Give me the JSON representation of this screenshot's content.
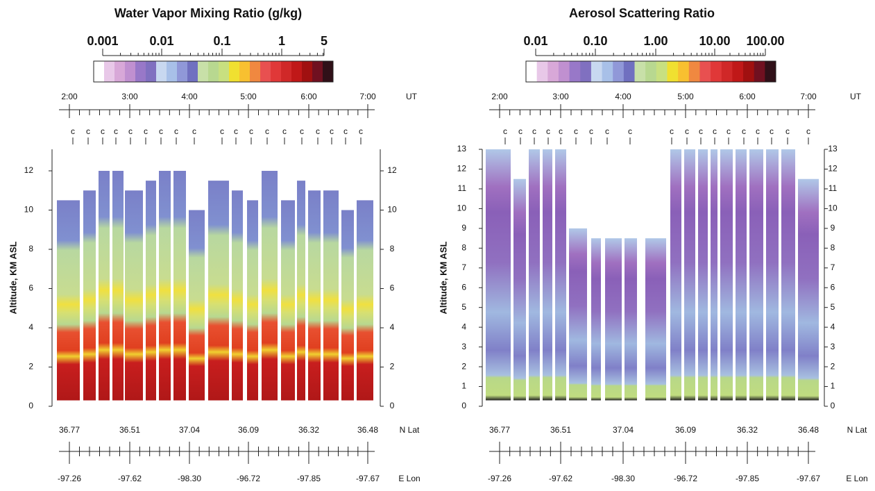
{
  "panels": [
    {
      "title": "Water Vapor Mixing Ratio (g/kg)",
      "colorbar_ticks": [
        "0.001",
        "0.01",
        "0.1",
        "1",
        "5"
      ],
      "time_ticks": [
        "2:00",
        "3:00",
        "4:00",
        "5:00",
        "6:00",
        "7:00"
      ],
      "time_unit": "UT",
      "marker": "c",
      "y_label": "Altitude, KM ASL",
      "y_ticks": [
        0,
        2,
        4,
        6,
        8,
        10,
        12
      ],
      "lat_ticks": [
        "36.77",
        "36.51",
        "37.04",
        "36.09",
        "36.32",
        "36.48"
      ],
      "lat_unit": "N Lat",
      "lon_ticks": [
        "-97.26",
        "-97.62",
        "-98.30",
        "-96.72",
        "-97.85",
        "-97.67"
      ],
      "lon_unit": "E Lon"
    },
    {
      "title": "Aerosol Scattering Ratio",
      "colorbar_ticks": [
        "0.01",
        "0.10",
        "1.00",
        "10.00",
        "100.00"
      ],
      "time_ticks": [
        "2:00",
        "3:00",
        "4:00",
        "5:00",
        "6:00",
        "7:00"
      ],
      "time_unit": "UT",
      "marker": "c",
      "y_label": "Altitude, KM ASL",
      "y_ticks": [
        0,
        1,
        2,
        3,
        4,
        5,
        6,
        7,
        8,
        9,
        10,
        11,
        12,
        13
      ],
      "lat_ticks": [
        "36.77",
        "36.51",
        "37.04",
        "36.09",
        "36.32",
        "36.48"
      ],
      "lat_unit": "N Lat",
      "lon_ticks": [
        "-97.26",
        "-97.62",
        "-98.30",
        "-96.72",
        "-97.85",
        "-97.67"
      ],
      "lon_unit": "E Lon"
    }
  ]
}
